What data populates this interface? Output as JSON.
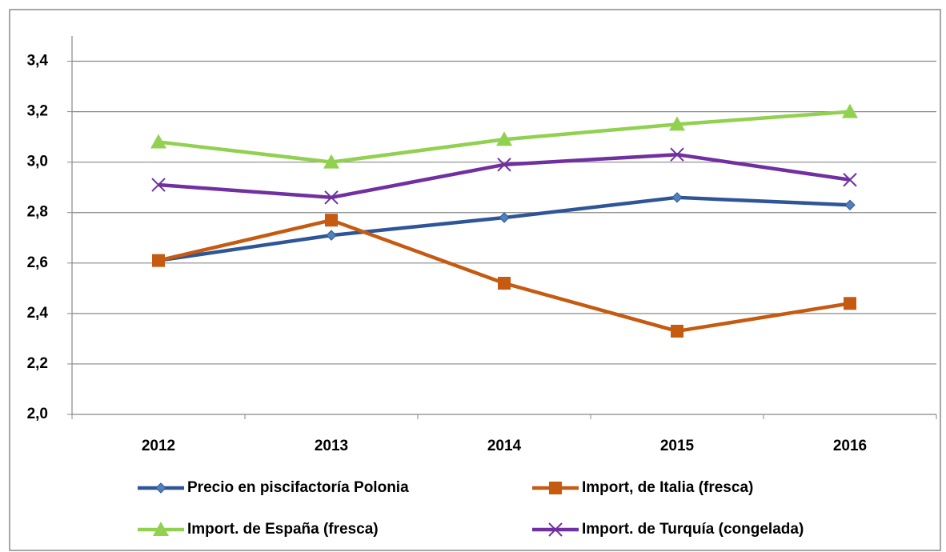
{
  "chart_data": {
    "type": "line",
    "categories": [
      "2012",
      "2013",
      "2014",
      "2015",
      "2016"
    ],
    "series": [
      {
        "name": "Precio en piscifactoría Polonia",
        "color": "#2e5597",
        "marker_color": "#4f81bd",
        "marker": "diamond",
        "values": [
          2.61,
          2.71,
          2.78,
          2.86,
          2.83
        ]
      },
      {
        "name": "Import, de Italia (fresca)",
        "color": "#c55a11",
        "marker_color": "#c55a11",
        "marker": "square",
        "values": [
          2.61,
          2.77,
          2.52,
          2.33,
          2.44
        ]
      },
      {
        "name": "Import. de España (fresca)",
        "color": "#92d050",
        "marker_color": "#92d050",
        "marker": "triangle",
        "values": [
          3.08,
          3.0,
          3.09,
          3.15,
          3.2
        ]
      },
      {
        "name": "Import. de Turquía (congelada)",
        "color": "#7030a0",
        "marker_color": "#7030a0",
        "marker": "x",
        "values": [
          2.91,
          2.86,
          2.99,
          3.03,
          2.93
        ]
      }
    ],
    "ylim": [
      2.0,
      3.5
    ],
    "yticks": [
      {
        "value": 2.0,
        "label": "2,0"
      },
      {
        "value": 2.2,
        "label": "2,2"
      },
      {
        "value": 2.4,
        "label": "2,4"
      },
      {
        "value": 2.6,
        "label": "2,6"
      },
      {
        "value": 2.8,
        "label": "2,8"
      },
      {
        "value": 3.0,
        "label": "3,0"
      },
      {
        "value": 3.2,
        "label": "3,2"
      },
      {
        "value": 3.4,
        "label": "3,4"
      }
    ],
    "grid": true,
    "legend": "bottom"
  }
}
